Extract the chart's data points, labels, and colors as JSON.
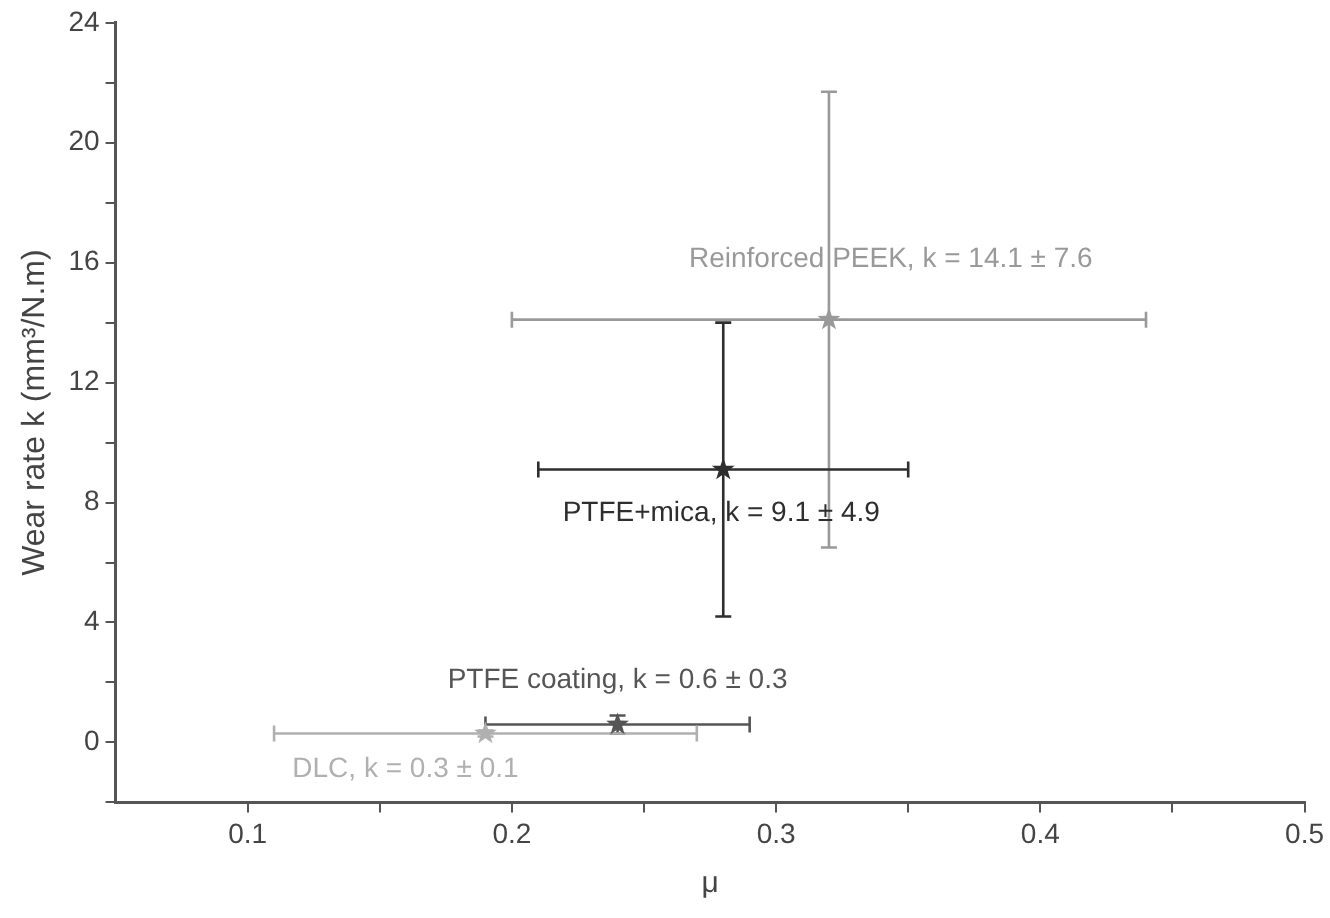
{
  "chart_data": {
    "type": "scatter",
    "xlabel": "μ",
    "ylabel": "Wear rate k (mm³/N.m)",
    "xlim": [
      0.05,
      0.5
    ],
    "xticks": [
      0.1,
      {
        "value": 0.15,
        "label": null
      },
      0.2,
      {
        "value": 0.25,
        "label": null
      },
      0.3,
      {
        "value": 0.35,
        "label": null
      },
      0.4,
      {
        "value": 0.45,
        "label": null
      },
      0.5
    ],
    "ylim": [
      -2,
      24
    ],
    "yticks": [
      {
        "value": -2,
        "label": null
      },
      0,
      {
        "value": 2,
        "label": null
      },
      4,
      {
        "value": 6,
        "label": null
      },
      8,
      {
        "value": 10,
        "label": null
      },
      12,
      {
        "value": 14,
        "label": null
      },
      16,
      {
        "value": 18,
        "label": null
      },
      20,
      {
        "value": 22,
        "label": null
      },
      24
    ],
    "grid": false,
    "legend": false,
    "marker": "star",
    "series": [
      {
        "name": "Reinforced PEEK, k = 14.1 ± 7.6",
        "color": "#999999",
        "x": [
          0.32
        ],
        "values": [
          14.1
        ],
        "errors": [
          7.6
        ],
        "xerrors": [
          0.12
        ]
      },
      {
        "name": "PTFE+mica, k = 9.1 ± 4.9",
        "color": "#2e2e2e",
        "x": [
          0.28
        ],
        "values": [
          9.1
        ],
        "errors": [
          4.9
        ],
        "xerrors": [
          0.07
        ]
      },
      {
        "name": "PTFE coating, k = 0.6 ± 0.3",
        "color": "#555555",
        "x": [
          0.24
        ],
        "values": [
          0.6
        ],
        "errors": [
          0.3
        ],
        "xerrors": [
          0.05
        ]
      },
      {
        "name": "DLC, k = 0.3 ± 0.1",
        "color": "#b0b0b0",
        "x": [
          0.19
        ],
        "values": [
          0.3
        ],
        "errors": [
          0.1
        ],
        "xerrors": [
          0.08
        ]
      }
    ]
  }
}
